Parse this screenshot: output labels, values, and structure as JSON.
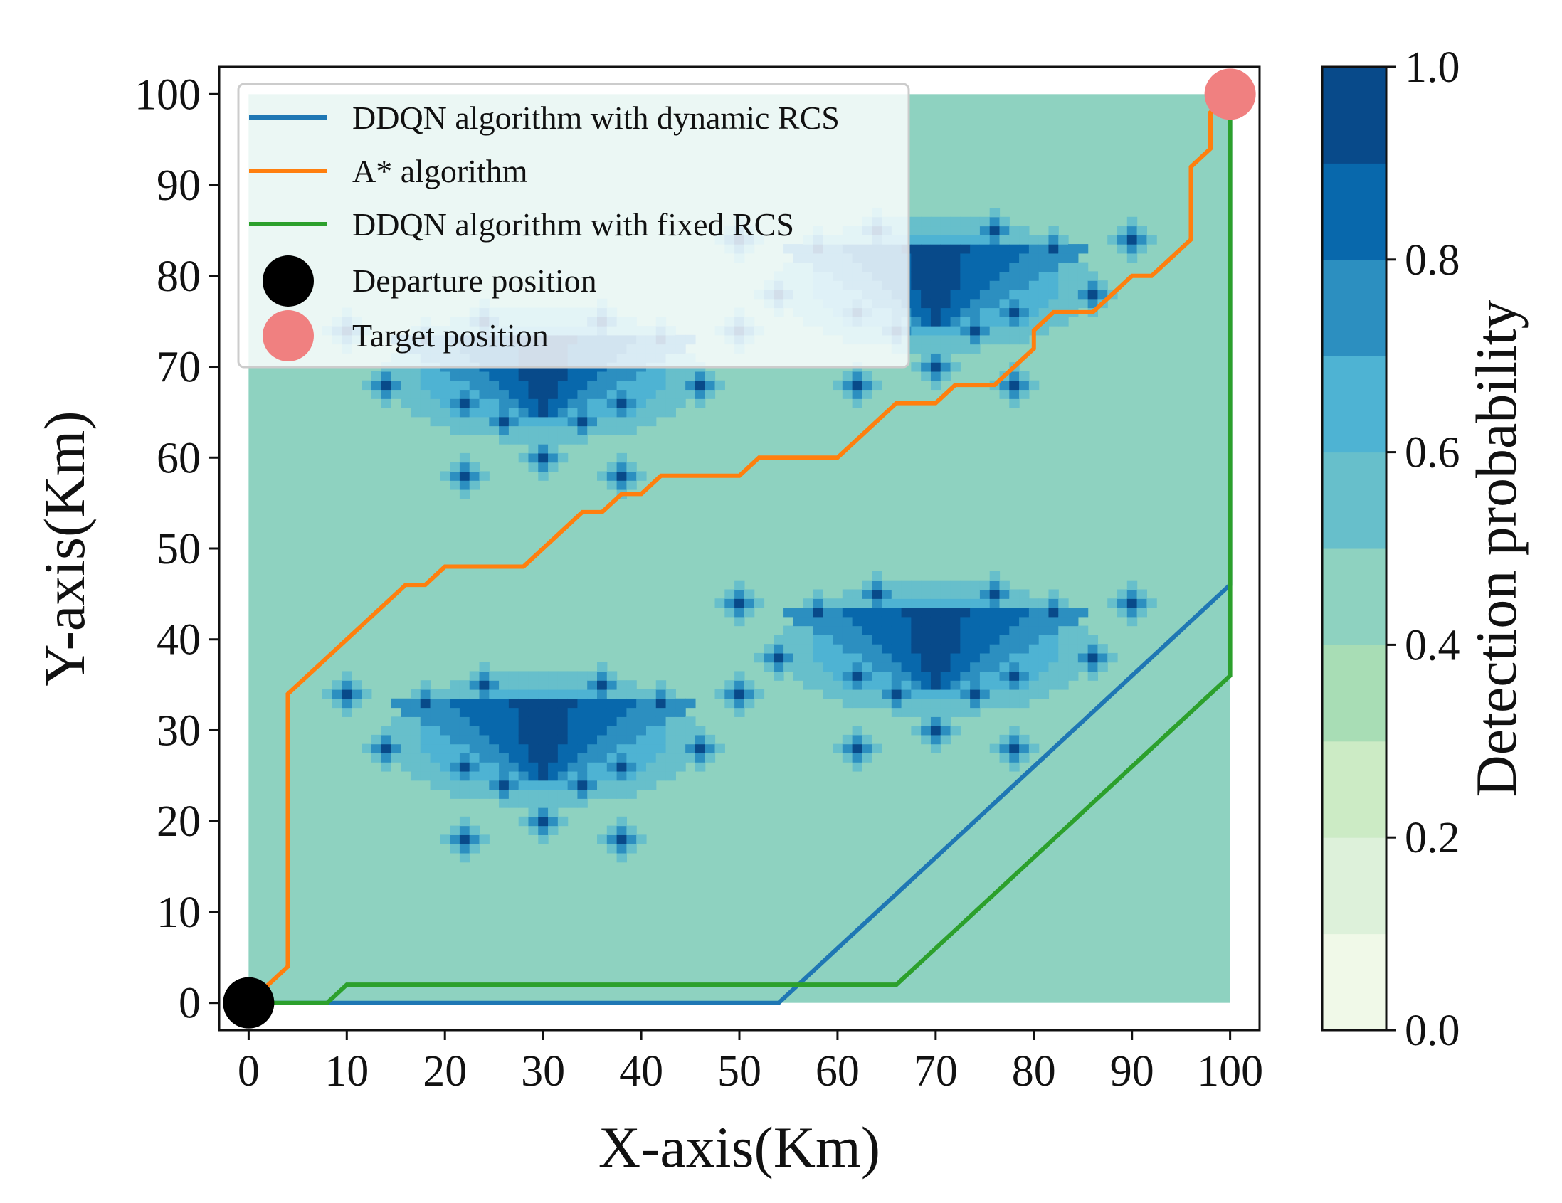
{
  "chart_data": {
    "type": "heatmap",
    "title": "",
    "xlabel": "X-axis(Km)",
    "ylabel": "Y-axis(Km)",
    "xlim": [
      -3,
      103
    ],
    "ylim": [
      -3,
      103
    ],
    "xticks": [
      0,
      10,
      20,
      30,
      40,
      50,
      60,
      70,
      80,
      90,
      100
    ],
    "yticks": [
      0,
      10,
      20,
      30,
      40,
      50,
      60,
      70,
      80,
      90,
      100
    ],
    "colorbar": {
      "label": "Detection probability",
      "range": [
        0.0,
        1.0
      ],
      "ticks": [
        0.0,
        0.2,
        0.4,
        0.6,
        0.8,
        1.0
      ],
      "tick_labels": [
        "0.0",
        "0.2",
        "0.4",
        "0.6",
        "0.8",
        "1.0"
      ],
      "levels": [
        0.0,
        0.1,
        0.2,
        0.3,
        0.4,
        0.5,
        0.6,
        0.7,
        0.8,
        0.9,
        1.0
      ],
      "colors": [
        "#f0f9e8",
        "#ddf1da",
        "#ccebc5",
        "#a8ddb5",
        "#8ed2c0",
        "#67bfcb",
        "#4eb3d3",
        "#2c8fc0",
        "#0868ac",
        "#084a8a"
      ]
    },
    "background_level": 0.45,
    "heatmap_domain": {
      "x": [
        0,
        100
      ],
      "y": [
        0,
        100
      ]
    },
    "radar_clusters": [
      {
        "center": [
          30,
          30
        ],
        "peak": 0.95
      },
      {
        "center": [
          70,
          40
        ],
        "peak": 0.95
      },
      {
        "center": [
          30,
          70
        ],
        "peak": 0.95
      },
      {
        "center": [
          70,
          80
        ],
        "peak": 0.95
      }
    ],
    "series": [
      {
        "name": "DDQN algorithm with dynamic RCS",
        "color": "#1f77b4",
        "points": [
          [
            0,
            0
          ],
          [
            54,
            0
          ],
          [
            100,
            46
          ],
          [
            100,
            100
          ]
        ]
      },
      {
        "name": "A* algorithm",
        "color": "#ff7f0e",
        "points": [
          [
            0,
            0
          ],
          [
            2,
            2
          ],
          [
            4,
            4
          ],
          [
            4,
            34
          ],
          [
            16,
            46
          ],
          [
            18,
            46
          ],
          [
            20,
            48
          ],
          [
            28,
            48
          ],
          [
            34,
            54
          ],
          [
            36,
            54
          ],
          [
            38,
            56
          ],
          [
            40,
            56
          ],
          [
            42,
            58
          ],
          [
            50,
            58
          ],
          [
            52,
            60
          ],
          [
            60,
            60
          ],
          [
            66,
            66
          ],
          [
            70,
            66
          ],
          [
            72,
            68
          ],
          [
            76,
            68
          ],
          [
            80,
            72
          ],
          [
            80,
            74
          ],
          [
            82,
            76
          ],
          [
            86,
            76
          ],
          [
            90,
            80
          ],
          [
            92,
            80
          ],
          [
            96,
            84
          ],
          [
            96,
            92
          ],
          [
            98,
            94
          ],
          [
            98,
            98
          ],
          [
            100,
            100
          ]
        ]
      },
      {
        "name": "DDQN algorithm with fixed RCS",
        "color": "#2ca02c",
        "points": [
          [
            0,
            0
          ],
          [
            8,
            0
          ],
          [
            10,
            2
          ],
          [
            66,
            2
          ],
          [
            100,
            36
          ],
          [
            100,
            100
          ]
        ]
      }
    ],
    "markers": [
      {
        "name": "Departure position",
        "color": "#000000",
        "x": 0,
        "y": 0
      },
      {
        "name": "Target position",
        "color": "#f08080",
        "x": 100,
        "y": 100
      }
    ],
    "legend": {
      "location": "upper-left",
      "entries": [
        "DDQN algorithm with dynamic RCS",
        "A* algorithm",
        "DDQN algorithm with fixed RCS",
        "Departure position",
        "Target position"
      ]
    }
  }
}
